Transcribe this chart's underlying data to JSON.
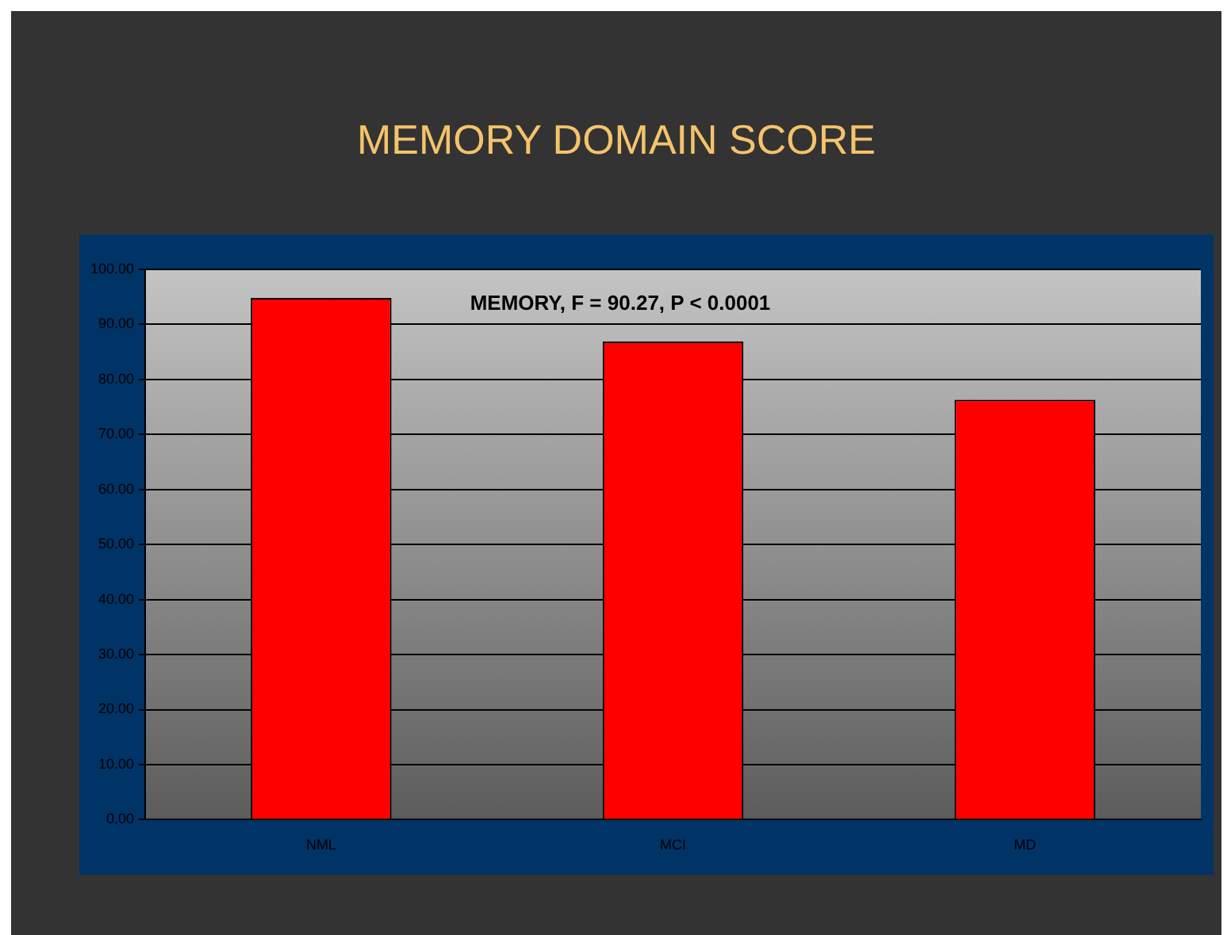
{
  "chart_data": {
    "type": "bar",
    "title": "MEMORY DOMAIN SCORE",
    "categories": [
      "NML",
      "MCI",
      "MD"
    ],
    "values": [
      94.8,
      86.9,
      76.3
    ],
    "color": "#ff0000",
    "ylim": [
      0,
      100
    ],
    "yticks": [
      {
        "value": 0,
        "label": "0.00"
      },
      {
        "value": 10,
        "label": "10.00"
      },
      {
        "value": 20,
        "label": "20.00"
      },
      {
        "value": 30,
        "label": "30.00"
      },
      {
        "value": 40,
        "label": "40.00"
      },
      {
        "value": 50,
        "label": "50.00"
      },
      {
        "value": 60,
        "label": "60.00"
      },
      {
        "value": 70,
        "label": "70.00"
      },
      {
        "value": 80,
        "label": "80.00"
      },
      {
        "value": 90,
        "label": "90.00"
      },
      {
        "value": 100,
        "label": "100.00"
      }
    ],
    "grid": "y",
    "legend": false,
    "annotations": [
      "MEMORY, F = 90.27, P < 0.0001"
    ]
  }
}
